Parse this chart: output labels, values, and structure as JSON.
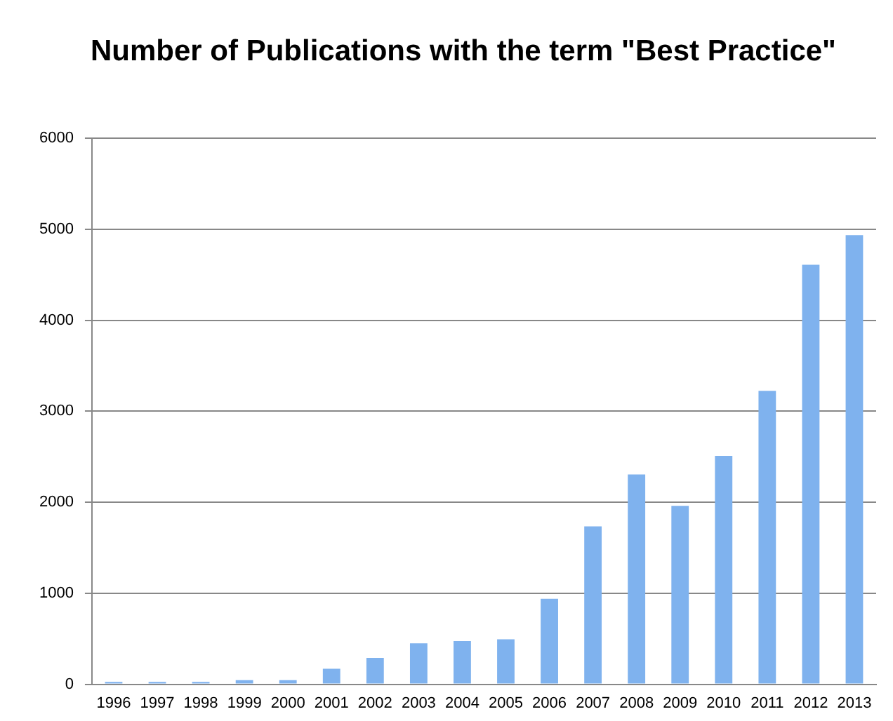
{
  "chart_data": {
    "type": "bar",
    "title": "Number of Publications with the term \"Best Practice\"",
    "categories": [
      "1996",
      "1997",
      "1998",
      "1999",
      "2000",
      "2001",
      "2002",
      "2003",
      "2004",
      "2005",
      "2006",
      "2007",
      "2008",
      "2009",
      "2010",
      "2011",
      "2012",
      "2013"
    ],
    "values": [
      25,
      25,
      25,
      45,
      45,
      170,
      290,
      450,
      475,
      495,
      940,
      1735,
      2305,
      1960,
      2510,
      3225,
      4610,
      4935
    ],
    "color": "#7fb2ee",
    "ylim": [
      0,
      6000
    ],
    "yticks": [
      0,
      1000,
      2000,
      3000,
      4000,
      5000,
      6000
    ],
    "grid": "y",
    "legend": false
  }
}
